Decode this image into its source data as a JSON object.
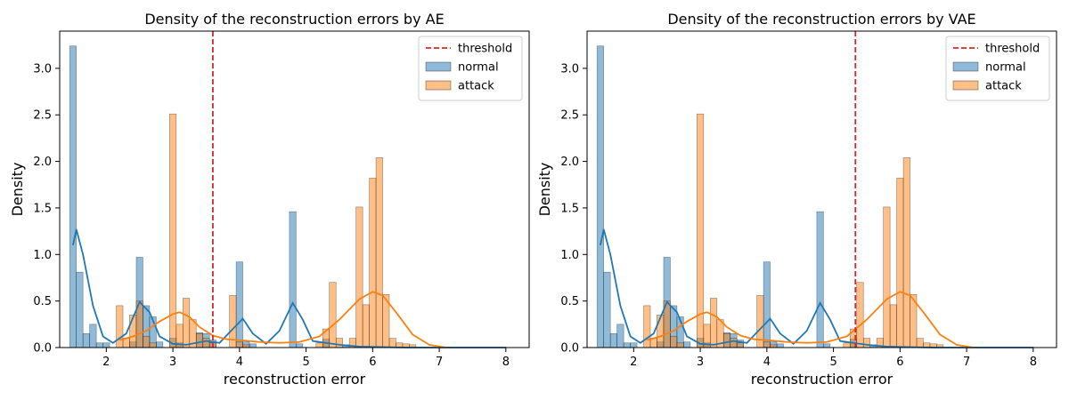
{
  "colors": {
    "normal": "#1f77b4",
    "attack": "#ff7f0e",
    "threshold": "#d62728"
  },
  "chart_data": [
    {
      "type": "histogram",
      "title": "Density of the reconstruction errors by AE",
      "xlabel": "reconstruction error",
      "ylabel": "Density",
      "xlim": [
        1.3,
        8.35
      ],
      "ylim": [
        0,
        3.4
      ],
      "xticks": [
        "2",
        "3",
        "4",
        "5",
        "6",
        "7",
        "8"
      ],
      "yticks": [
        "0.0",
        "0.5",
        "1.0",
        "1.5",
        "2.0",
        "2.5",
        "3.0"
      ],
      "legend": {
        "placement": "top-right",
        "entries": [
          "threshold",
          "normal",
          "attack"
        ]
      },
      "threshold": 3.6,
      "bin_width": 0.1,
      "series": [
        {
          "name": "normal",
          "bins": [
            [
              1.5,
              3.24
            ],
            [
              1.6,
              0.81
            ],
            [
              1.7,
              0.15
            ],
            [
              1.8,
              0.25
            ],
            [
              1.9,
              0.05
            ],
            [
              2.0,
              0.05
            ],
            [
              2.4,
              0.06
            ],
            [
              2.5,
              0.97
            ],
            [
              2.6,
              0.45
            ],
            [
              2.7,
              0.33
            ],
            [
              2.8,
              0.06
            ],
            [
              3.0,
              0.1
            ],
            [
              3.1,
              0.05
            ],
            [
              3.4,
              0.16
            ],
            [
              3.5,
              0.15
            ],
            [
              3.6,
              0.08
            ],
            [
              4.0,
              0.92
            ],
            [
              4.1,
              0.06
            ],
            [
              4.2,
              0.04
            ],
            [
              4.8,
              1.46
            ],
            [
              4.9,
              0.04
            ],
            [
              5.3,
              0.09
            ],
            [
              5.6,
              0.03
            ]
          ],
          "kde": [
            [
              1.5,
              1.1
            ],
            [
              1.55,
              1.27
            ],
            [
              1.65,
              1.0
            ],
            [
              1.8,
              0.45
            ],
            [
              1.95,
              0.12
            ],
            [
              2.1,
              0.05
            ],
            [
              2.3,
              0.15
            ],
            [
              2.5,
              0.49
            ],
            [
              2.65,
              0.38
            ],
            [
              2.8,
              0.12
            ],
            [
              3.0,
              0.04
            ],
            [
              3.2,
              0.03
            ],
            [
              3.5,
              0.07
            ],
            [
              3.7,
              0.05
            ],
            [
              3.9,
              0.2
            ],
            [
              4.05,
              0.31
            ],
            [
              4.2,
              0.15
            ],
            [
              4.4,
              0.04
            ],
            [
              4.6,
              0.18
            ],
            [
              4.8,
              0.48
            ],
            [
              4.95,
              0.3
            ],
            [
              5.1,
              0.07
            ],
            [
              5.3,
              0.05
            ],
            [
              5.5,
              0.03
            ],
            [
              5.8,
              0.01
            ],
            [
              6.5,
              0.0
            ],
            [
              8.0,
              0.0
            ]
          ]
        },
        {
          "name": "attack",
          "bins": [
            [
              2.2,
              0.45
            ],
            [
              2.3,
              0.1
            ],
            [
              2.4,
              0.35
            ],
            [
              2.5,
              0.5
            ],
            [
              2.6,
              0.12
            ],
            [
              2.7,
              0.05
            ],
            [
              3.0,
              2.51
            ],
            [
              3.1,
              0.25
            ],
            [
              3.2,
              0.53
            ],
            [
              3.3,
              0.3
            ],
            [
              3.4,
              0.15
            ],
            [
              3.5,
              0.1
            ],
            [
              3.6,
              0.05
            ],
            [
              3.9,
              0.56
            ],
            [
              4.0,
              0.06
            ],
            [
              4.1,
              0.03
            ],
            [
              5.2,
              0.05
            ],
            [
              5.3,
              0.2
            ],
            [
              5.4,
              0.7
            ],
            [
              5.5,
              0.1
            ],
            [
              5.7,
              0.1
            ],
            [
              5.8,
              1.51
            ],
            [
              5.9,
              0.46
            ],
            [
              6.0,
              1.82
            ],
            [
              6.1,
              2.04
            ],
            [
              6.2,
              0.57
            ],
            [
              6.3,
              0.1
            ],
            [
              6.4,
              0.05
            ],
            [
              6.5,
              0.04
            ],
            [
              6.6,
              0.03
            ]
          ],
          "kde": [
            [
              2.2,
              0.08
            ],
            [
              2.4,
              0.12
            ],
            [
              2.6,
              0.18
            ],
            [
              2.8,
              0.28
            ],
            [
              3.0,
              0.36
            ],
            [
              3.1,
              0.38
            ],
            [
              3.25,
              0.33
            ],
            [
              3.4,
              0.22
            ],
            [
              3.6,
              0.13
            ],
            [
              3.8,
              0.09
            ],
            [
              4.0,
              0.08
            ],
            [
              4.3,
              0.06
            ],
            [
              4.6,
              0.05
            ],
            [
              4.9,
              0.06
            ],
            [
              5.2,
              0.12
            ],
            [
              5.5,
              0.3
            ],
            [
              5.8,
              0.52
            ],
            [
              6.0,
              0.6
            ],
            [
              6.15,
              0.56
            ],
            [
              6.35,
              0.38
            ],
            [
              6.6,
              0.14
            ],
            [
              6.85,
              0.03
            ],
            [
              7.1,
              0.0
            ]
          ]
        }
      ]
    },
    {
      "type": "histogram",
      "title": "Density of the reconstruction errors by VAE",
      "xlabel": "reconstruction error",
      "ylabel": "Density",
      "xlim": [
        1.3,
        8.35
      ],
      "ylim": [
        0,
        3.4
      ],
      "xticks": [
        "2",
        "3",
        "4",
        "5",
        "6",
        "7",
        "8"
      ],
      "yticks": [
        "0.0",
        "0.5",
        "1.0",
        "1.5",
        "2.0",
        "2.5",
        "3.0"
      ],
      "legend": {
        "placement": "top-right",
        "entries": [
          "threshold",
          "normal",
          "attack"
        ]
      },
      "threshold": 5.33,
      "bin_width": 0.1,
      "series": [
        {
          "name": "normal",
          "bins": [
            [
              1.5,
              3.24
            ],
            [
              1.6,
              0.81
            ],
            [
              1.7,
              0.15
            ],
            [
              1.8,
              0.25
            ],
            [
              1.9,
              0.05
            ],
            [
              2.0,
              0.05
            ],
            [
              2.4,
              0.06
            ],
            [
              2.5,
              0.97
            ],
            [
              2.6,
              0.45
            ],
            [
              2.7,
              0.33
            ],
            [
              2.8,
              0.06
            ],
            [
              3.0,
              0.1
            ],
            [
              3.1,
              0.05
            ],
            [
              3.4,
              0.16
            ],
            [
              3.5,
              0.15
            ],
            [
              3.6,
              0.08
            ],
            [
              4.0,
              0.92
            ],
            [
              4.1,
              0.06
            ],
            [
              4.2,
              0.04
            ],
            [
              4.8,
              1.46
            ],
            [
              4.9,
              0.04
            ],
            [
              5.3,
              0.09
            ],
            [
              5.6,
              0.03
            ]
          ],
          "kde": [
            [
              1.5,
              1.1
            ],
            [
              1.55,
              1.27
            ],
            [
              1.65,
              1.0
            ],
            [
              1.8,
              0.45
            ],
            [
              1.95,
              0.12
            ],
            [
              2.1,
              0.05
            ],
            [
              2.3,
              0.15
            ],
            [
              2.5,
              0.49
            ],
            [
              2.65,
              0.38
            ],
            [
              2.8,
              0.12
            ],
            [
              3.0,
              0.04
            ],
            [
              3.2,
              0.03
            ],
            [
              3.5,
              0.07
            ],
            [
              3.7,
              0.05
            ],
            [
              3.9,
              0.2
            ],
            [
              4.05,
              0.31
            ],
            [
              4.2,
              0.15
            ],
            [
              4.4,
              0.04
            ],
            [
              4.6,
              0.18
            ],
            [
              4.8,
              0.48
            ],
            [
              4.95,
              0.3
            ],
            [
              5.1,
              0.07
            ],
            [
              5.3,
              0.05
            ],
            [
              5.5,
              0.03
            ],
            [
              5.8,
              0.01
            ],
            [
              6.5,
              0.0
            ],
            [
              8.0,
              0.0
            ]
          ]
        },
        {
          "name": "attack",
          "bins": [
            [
              2.2,
              0.45
            ],
            [
              2.3,
              0.1
            ],
            [
              2.4,
              0.35
            ],
            [
              2.5,
              0.5
            ],
            [
              2.6,
              0.12
            ],
            [
              2.7,
              0.05
            ],
            [
              3.0,
              2.51
            ],
            [
              3.1,
              0.25
            ],
            [
              3.2,
              0.53
            ],
            [
              3.3,
              0.3
            ],
            [
              3.4,
              0.15
            ],
            [
              3.5,
              0.1
            ],
            [
              3.6,
              0.05
            ],
            [
              3.9,
              0.56
            ],
            [
              4.0,
              0.06
            ],
            [
              4.1,
              0.03
            ],
            [
              5.2,
              0.05
            ],
            [
              5.3,
              0.2
            ],
            [
              5.4,
              0.7
            ],
            [
              5.5,
              0.1
            ],
            [
              5.7,
              0.1
            ],
            [
              5.8,
              1.51
            ],
            [
              5.9,
              0.46
            ],
            [
              6.0,
              1.82
            ],
            [
              6.1,
              2.04
            ],
            [
              6.2,
              0.57
            ],
            [
              6.3,
              0.1
            ],
            [
              6.4,
              0.05
            ],
            [
              6.5,
              0.04
            ],
            [
              6.6,
              0.03
            ]
          ],
          "kde": [
            [
              2.2,
              0.08
            ],
            [
              2.4,
              0.12
            ],
            [
              2.6,
              0.18
            ],
            [
              2.8,
              0.28
            ],
            [
              3.0,
              0.36
            ],
            [
              3.1,
              0.38
            ],
            [
              3.25,
              0.33
            ],
            [
              3.4,
              0.22
            ],
            [
              3.6,
              0.13
            ],
            [
              3.8,
              0.09
            ],
            [
              4.0,
              0.08
            ],
            [
              4.3,
              0.06
            ],
            [
              4.6,
              0.05
            ],
            [
              4.9,
              0.06
            ],
            [
              5.2,
              0.12
            ],
            [
              5.5,
              0.3
            ],
            [
              5.8,
              0.52
            ],
            [
              6.0,
              0.6
            ],
            [
              6.15,
              0.56
            ],
            [
              6.35,
              0.38
            ],
            [
              6.6,
              0.14
            ],
            [
              6.85,
              0.03
            ],
            [
              7.1,
              0.0
            ]
          ]
        }
      ]
    }
  ]
}
